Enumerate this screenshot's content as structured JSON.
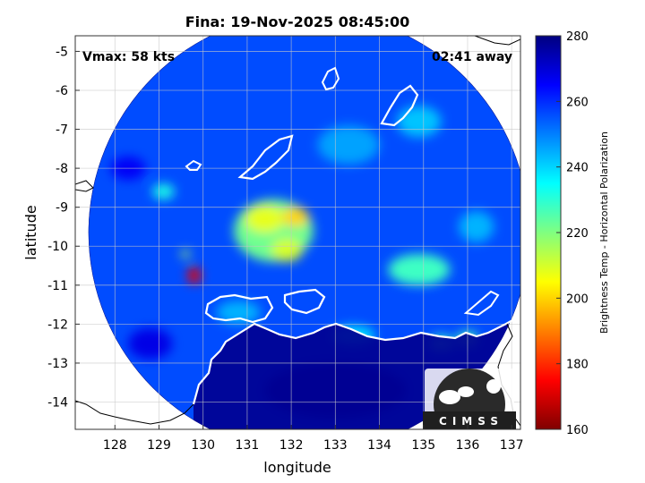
{
  "chart_data": {
    "type": "heatmap",
    "title": "Fina: 19-Nov-2025 08:45:00",
    "xlabel": "longitude",
    "ylabel": "latitude",
    "xlim": [
      127.1,
      137.2
    ],
    "ylim": [
      -14.7,
      -4.6
    ],
    "x_ticks": [
      128,
      129,
      130,
      131,
      132,
      133,
      134,
      135,
      136,
      137
    ],
    "y_ticks": [
      -5,
      -6,
      -7,
      -8,
      -9,
      -10,
      -11,
      -12,
      -13,
      -14
    ],
    "grid": true,
    "annotations": {
      "vmax": "Vmax: 58 kts",
      "time_away": "02:41 away"
    },
    "colorbar": {
      "label": "Brightness Temp - Horizontal Polarization",
      "range": [
        160,
        280
      ],
      "ticks": [
        280,
        260,
        240,
        220,
        200,
        180,
        160
      ]
    },
    "swath": {
      "center": [
        132.4,
        -9.65
      ],
      "radius_deg": 5.0
    },
    "land_temp": 278,
    "background_temp": 256,
    "features": [
      {
        "lon": 131.6,
        "lat": -9.6,
        "sx": 0.9,
        "sy": 0.8,
        "temp": 222
      },
      {
        "lon": 131.4,
        "lat": -9.3,
        "sx": 0.45,
        "sy": 0.35,
        "temp": 208
      },
      {
        "lon": 132.1,
        "lat": -9.25,
        "sx": 0.3,
        "sy": 0.25,
        "temp": 200
      },
      {
        "lon": 131.9,
        "lat": -10.1,
        "sx": 0.35,
        "sy": 0.3,
        "temp": 210
      },
      {
        "lon": 129.8,
        "lat": -10.75,
        "sx": 0.15,
        "sy": 0.22,
        "temp": 172
      },
      {
        "lon": 129.6,
        "lat": -10.2,
        "sx": 0.1,
        "sy": 0.1,
        "temp": 215
      },
      {
        "lon": 134.9,
        "lat": -10.6,
        "sx": 0.7,
        "sy": 0.4,
        "temp": 228
      },
      {
        "lon": 133.4,
        "lat": -12.3,
        "sx": 0.5,
        "sy": 0.25,
        "temp": 238
      },
      {
        "lon": 135.4,
        "lat": -12.5,
        "sx": 0.3,
        "sy": 0.2,
        "temp": 228
      },
      {
        "lon": 136.0,
        "lat": -12.4,
        "sx": 0.25,
        "sy": 0.2,
        "temp": 226
      },
      {
        "lon": 129.1,
        "lat": -8.6,
        "sx": 0.25,
        "sy": 0.2,
        "temp": 232
      },
      {
        "lon": 133.3,
        "lat": -7.4,
        "sx": 0.7,
        "sy": 0.5,
        "temp": 246
      },
      {
        "lon": 134.9,
        "lat": -6.8,
        "sx": 0.5,
        "sy": 0.4,
        "temp": 242
      },
      {
        "lon": 130.8,
        "lat": -11.7,
        "sx": 0.5,
        "sy": 0.3,
        "temp": 244
      },
      {
        "lon": 136.2,
        "lat": -9.5,
        "sx": 0.4,
        "sy": 0.4,
        "temp": 244
      },
      {
        "lon": 133.0,
        "lat": -13.7,
        "sx": 1.6,
        "sy": 0.7,
        "temp": 276
      },
      {
        "lon": 128.3,
        "lat": -8.0,
        "sx": 0.4,
        "sy": 0.3,
        "temp": 266
      },
      {
        "lon": 128.8,
        "lat": -12.5,
        "sx": 0.5,
        "sy": 0.4,
        "temp": 268
      }
    ],
    "logo_text": "CIMSS"
  }
}
